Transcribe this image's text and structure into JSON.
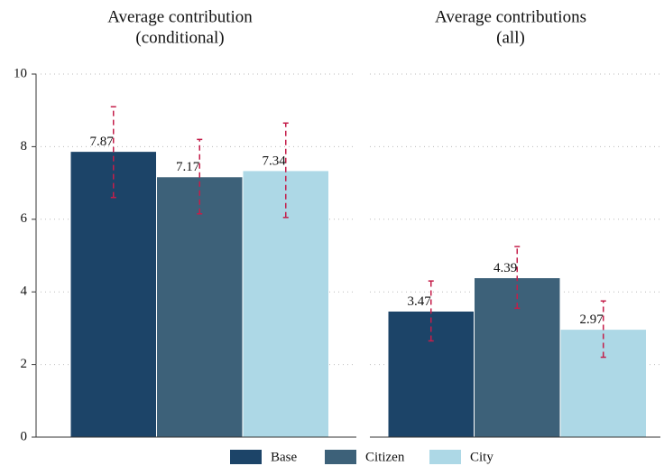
{
  "chart_data": {
    "type": "bar",
    "panel_titles": [
      [
        "Average contribution",
        "(conditional)"
      ],
      [
        "Average contributions",
        "(all)"
      ]
    ],
    "series": [
      {
        "name": "Base",
        "color": "#1c4468",
        "values": [
          7.87,
          3.47
        ],
        "ci_low": [
          6.6,
          2.65
        ],
        "ci_high": [
          9.1,
          4.3
        ]
      },
      {
        "name": "Citizen",
        "color": "#3d6179",
        "values": [
          7.17,
          4.39
        ],
        "ci_low": [
          6.15,
          3.55
        ],
        "ci_high": [
          8.2,
          5.25
        ]
      },
      {
        "name": "City",
        "color": "#add8e6",
        "values": [
          7.34,
          2.97
        ],
        "ci_low": [
          6.05,
          2.2
        ],
        "ci_high": [
          8.65,
          3.75
        ]
      }
    ],
    "error_color": "#c41e4a",
    "ylim": [
      0,
      10
    ],
    "yticks": [
      0,
      2,
      4,
      6,
      8,
      10
    ],
    "grid": true
  }
}
